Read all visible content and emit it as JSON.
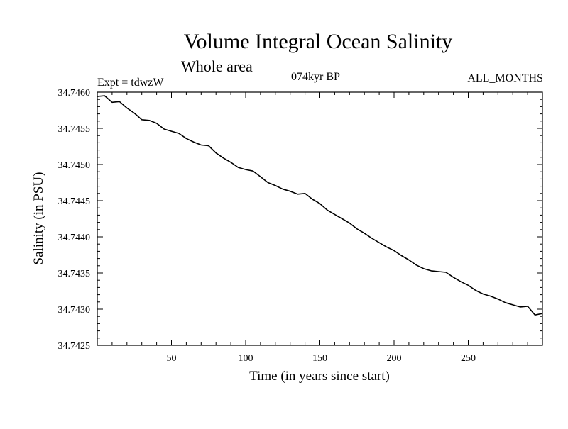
{
  "header": {
    "title": "Volume Integral Ocean Salinity",
    "subtitle": "Whole area",
    "experiment": "Expt = tdwzW",
    "period": "074kyr BP",
    "months": "ALL_MONTHS"
  },
  "chart_data": {
    "type": "line",
    "title": "Volume Integral Ocean Salinity",
    "subtitle": "Whole area",
    "xlabel": "Time (in years since start)",
    "ylabel": "Salinity (in PSU)",
    "xlim": [
      0,
      300
    ],
    "ylim": [
      34.7425,
      34.746
    ],
    "xticks": [
      50,
      100,
      150,
      200,
      250
    ],
    "yticks": [
      34.7425,
      34.743,
      34.7435,
      34.744,
      34.7445,
      34.745,
      34.7455,
      34.746
    ],
    "ytick_labels": [
      "34.7425",
      "34.7430",
      "34.7435",
      "34.7440",
      "34.7445",
      "34.7450",
      "34.7455",
      "34.7460"
    ],
    "grid": false,
    "series": [
      {
        "x": [
          0,
          5,
          10,
          15,
          20,
          25,
          30,
          35,
          40,
          45,
          50,
          55,
          60,
          65,
          70,
          75,
          80,
          85,
          90,
          95,
          100,
          105,
          110,
          115,
          120,
          125,
          130,
          135,
          140,
          145,
          150,
          155,
          160,
          165,
          170,
          175,
          180,
          185,
          190,
          195,
          200,
          205,
          210,
          215,
          220,
          225,
          230,
          235,
          240,
          245,
          250,
          255,
          260,
          265,
          270,
          275,
          280,
          285,
          290,
          295,
          300
        ],
        "y": [
          34.74594,
          34.74595,
          34.74586,
          34.74587,
          34.74578,
          34.74571,
          34.74562,
          34.74561,
          34.74557,
          34.74549,
          34.74546,
          34.74543,
          34.74536,
          34.74531,
          34.74527,
          34.74526,
          34.74516,
          34.74509,
          34.74503,
          34.74496,
          34.74493,
          34.74491,
          34.74483,
          34.74475,
          34.74471,
          34.74466,
          34.74463,
          34.74459,
          34.7446,
          34.74452,
          34.74446,
          34.74437,
          34.74431,
          34.74425,
          34.74419,
          34.74411,
          34.74405,
          34.74398,
          34.74392,
          34.74386,
          34.74381,
          34.74374,
          34.74368,
          34.74361,
          34.74356,
          34.74353,
          34.74352,
          34.74351,
          34.74344,
          34.74338,
          34.74333,
          34.74326,
          34.74321,
          34.74318,
          34.74314,
          34.74309,
          34.74306,
          34.74303,
          34.74304,
          34.74292,
          34.74294
        ]
      }
    ]
  }
}
